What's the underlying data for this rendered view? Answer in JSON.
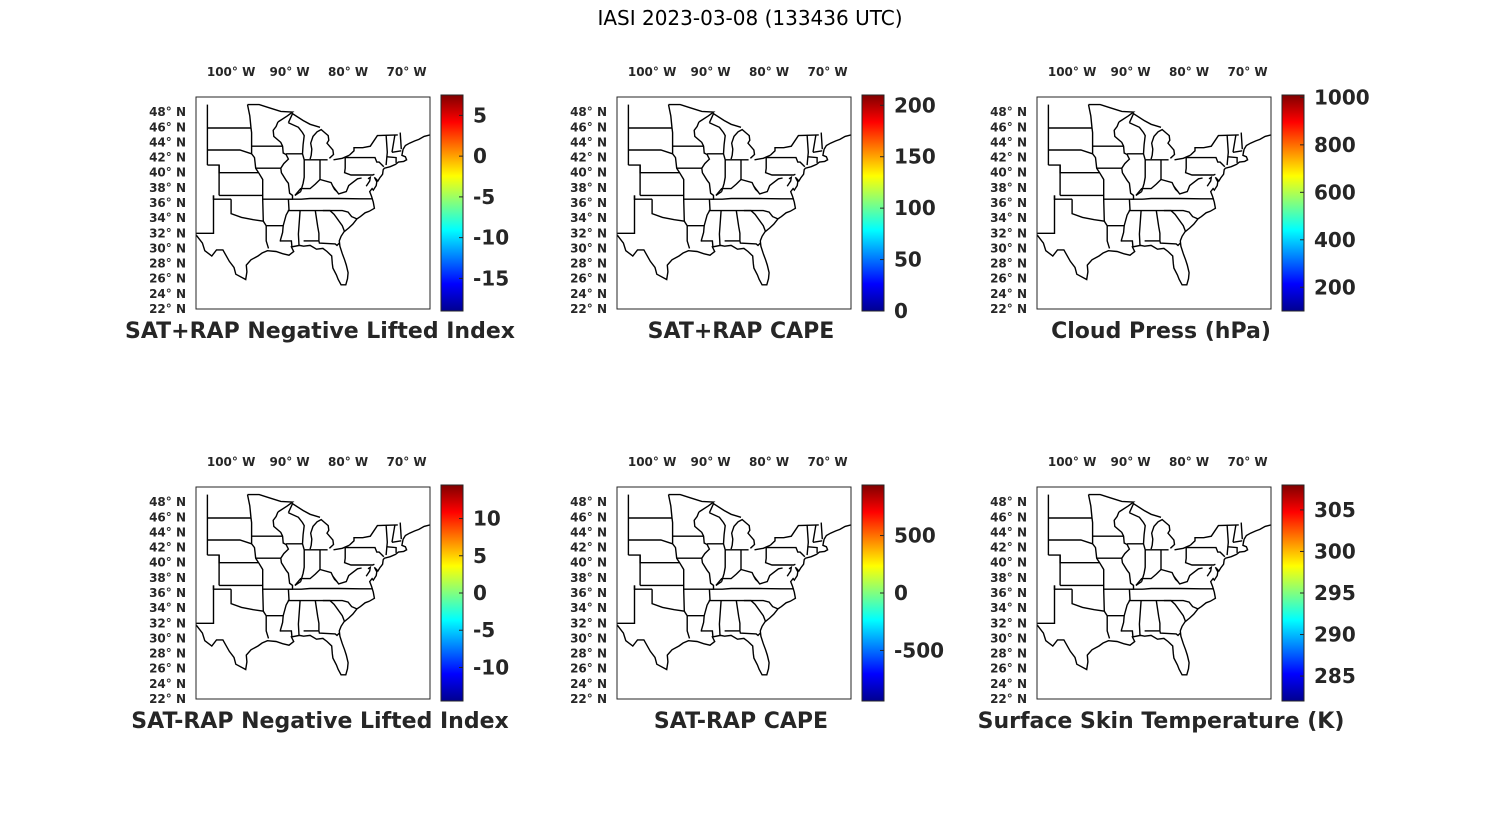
{
  "figure": {
    "title": "IASI 2023-03-08 (133436 UTC)"
  },
  "colormap": [
    "#00008f",
    "#0000ff",
    "#0080ff",
    "#00ffff",
    "#80ff80",
    "#ffff00",
    "#ff8000",
    "#ff0000",
    "#800000"
  ],
  "map": {
    "projection": "geographic",
    "lon_range": [
      -106,
      -66
    ],
    "lat_range": [
      22,
      50
    ],
    "lon_ticks": [
      {
        "value": -100,
        "label": "100° W"
      },
      {
        "value": -90,
        "label": "90° W"
      },
      {
        "value": -80,
        "label": "80° W"
      },
      {
        "value": -70,
        "label": "70° W"
      }
    ],
    "lat_ticks": [
      {
        "value": 48,
        "label": "48° N"
      },
      {
        "value": 46,
        "label": "46° N"
      },
      {
        "value": 44,
        "label": "44° N"
      },
      {
        "value": 42,
        "label": "42° N"
      },
      {
        "value": 40,
        "label": "40° N"
      },
      {
        "value": 38,
        "label": "38° N"
      },
      {
        "value": 36,
        "label": "36° N"
      },
      {
        "value": 34,
        "label": "34° N"
      },
      {
        "value": 32,
        "label": "32° N"
      },
      {
        "value": 30,
        "label": "30° N"
      },
      {
        "value": 28,
        "label": "28° N"
      },
      {
        "value": 26,
        "label": "26° N"
      },
      {
        "value": 24,
        "label": "24° N"
      },
      {
        "value": 22,
        "label": "22° N"
      }
    ]
  },
  "chart_data": [
    {
      "type": "heatmap",
      "title": "SAT+RAP Negative Lifted Index",
      "colorbar": {
        "range": [
          -19,
          7.5
        ],
        "ticks": [
          "5",
          "0",
          "-5",
          "-10",
          "-15"
        ],
        "tick_values": [
          5,
          0,
          -5,
          -10,
          -15
        ]
      }
    },
    {
      "type": "heatmap",
      "title": "SAT+RAP CAPE",
      "colorbar": {
        "range": [
          0,
          210
        ],
        "ticks": [
          "200",
          "150",
          "100",
          "50",
          "0"
        ],
        "tick_values": [
          200,
          150,
          100,
          50,
          0
        ]
      }
    },
    {
      "type": "heatmap",
      "title": "Cloud Press (hPa)",
      "colorbar": {
        "range": [
          100,
          1010
        ],
        "ticks": [
          "1000",
          "800",
          "600",
          "400",
          "200"
        ],
        "tick_values": [
          1000,
          800,
          600,
          400,
          200
        ]
      }
    },
    {
      "type": "heatmap",
      "title": "SAT-RAP Negative Lifted Index",
      "colorbar": {
        "range": [
          -14.5,
          14.5
        ],
        "ticks": [
          "10",
          "5",
          "0",
          "-5",
          "-10"
        ],
        "tick_values": [
          10,
          5,
          0,
          -5,
          -10
        ]
      }
    },
    {
      "type": "heatmap",
      "title": "SAT-RAP CAPE",
      "colorbar": {
        "range": [
          -940,
          940
        ],
        "ticks": [
          "500",
          "0",
          "-500"
        ],
        "tick_values": [
          500,
          0,
          -500
        ]
      }
    },
    {
      "type": "heatmap",
      "title": "Surface Skin Temperature (K)",
      "colorbar": {
        "range": [
          282,
          308
        ],
        "ticks": [
          "305",
          "300",
          "295",
          "290",
          "285"
        ],
        "tick_values": [
          305,
          300,
          295,
          290,
          285
        ]
      }
    }
  ]
}
